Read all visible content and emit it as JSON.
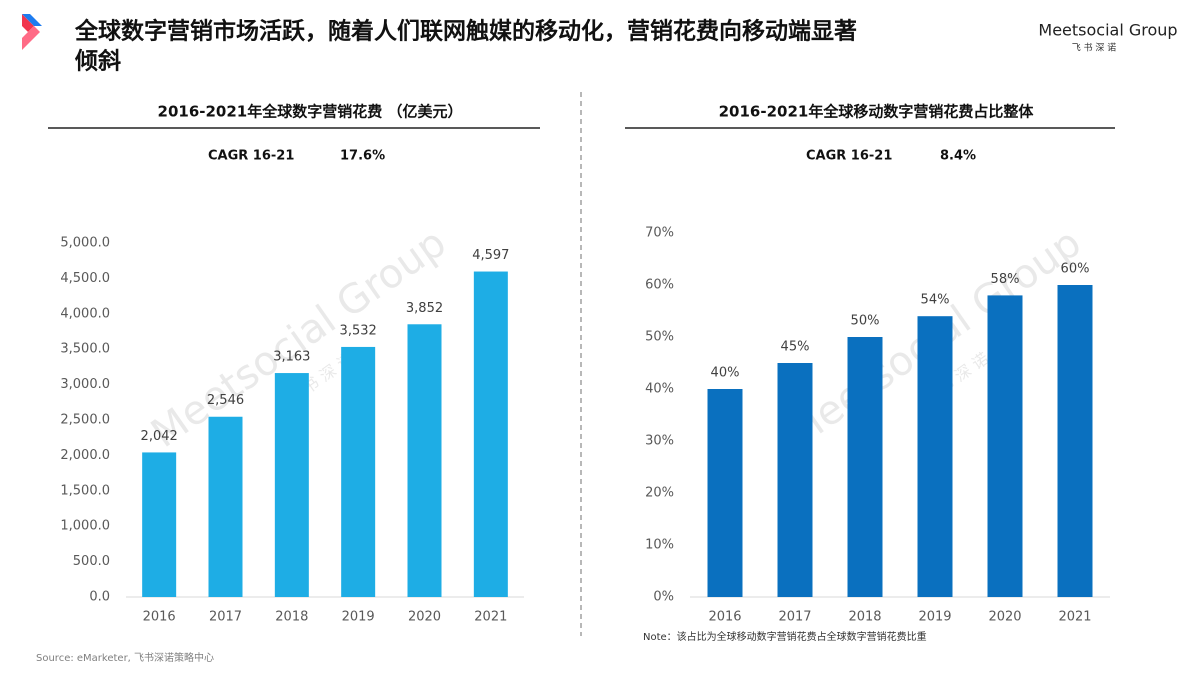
{
  "header": {
    "title_line1": "全球数字营销市场活跃，随着人们联网触媒的移动化，营销花费向移动端显著",
    "title_line2": "倾斜",
    "logo": "Meetsocial Group",
    "logo_sub": "飞 书 深 诺"
  },
  "watermark": "Meetsocial Group",
  "watermark_sub": "飞 书 深 诺",
  "chart_data": [
    {
      "type": "bar",
      "title": "2016-2021年全球数字营销花费 （亿美元）",
      "annotation_label": "CAGR 16-21",
      "annotation_value": "17.6%",
      "categories": [
        "2016",
        "2017",
        "2018",
        "2019",
        "2020",
        "2021"
      ],
      "values": [
        2042,
        2546,
        3163,
        3532,
        3852,
        4597
      ],
      "value_labels": [
        "2,042",
        "2,546",
        "3,163",
        "3,532",
        "3,852",
        "4,597"
      ],
      "color": "#1eade5",
      "ylim": [
        0,
        5000
      ],
      "yticks": [
        {
          "value": 0,
          "label": "0.0"
        },
        {
          "value": 500,
          "label": "500.0"
        },
        {
          "value": 1000,
          "label": "1,000.0"
        },
        {
          "value": 1500,
          "label": "1,500.0"
        },
        {
          "value": 2000,
          "label": "2,000.0"
        },
        {
          "value": 2500,
          "label": "2,500.0"
        },
        {
          "value": 3000,
          "label": "3,000.0"
        },
        {
          "value": 3500,
          "label": "3,500.0"
        },
        {
          "value": 4000,
          "label": "4,000.0"
        },
        {
          "value": 4500,
          "label": "4,500.0"
        },
        {
          "value": 5000,
          "label": "5,000.0"
        }
      ]
    },
    {
      "type": "bar",
      "title": "2016-2021年全球移动数字营销花费占比整体",
      "annotation_label": "CAGR 16-21",
      "annotation_value": "8.4%",
      "categories": [
        "2016",
        "2017",
        "2018",
        "2019",
        "2020",
        "2021"
      ],
      "values": [
        40,
        45,
        50,
        54,
        58,
        60
      ],
      "value_labels": [
        "40%",
        "45%",
        "50%",
        "54%",
        "58%",
        "60%"
      ],
      "color": "#0a70bf",
      "ylim": [
        0,
        70
      ],
      "yticks": [
        {
          "value": 0,
          "label": "0%"
        },
        {
          "value": 10,
          "label": "10%"
        },
        {
          "value": 20,
          "label": "20%"
        },
        {
          "value": 30,
          "label": "30%"
        },
        {
          "value": 40,
          "label": "40%"
        },
        {
          "value": 50,
          "label": "50%"
        },
        {
          "value": 60,
          "label": "60%"
        },
        {
          "value": 70,
          "label": "70%"
        }
      ],
      "note": "Note：该占比为全球移动数字营销花费占全球数字营销花费比重"
    }
  ],
  "source": "Source: eMarketer, 飞书深诺策略中心"
}
